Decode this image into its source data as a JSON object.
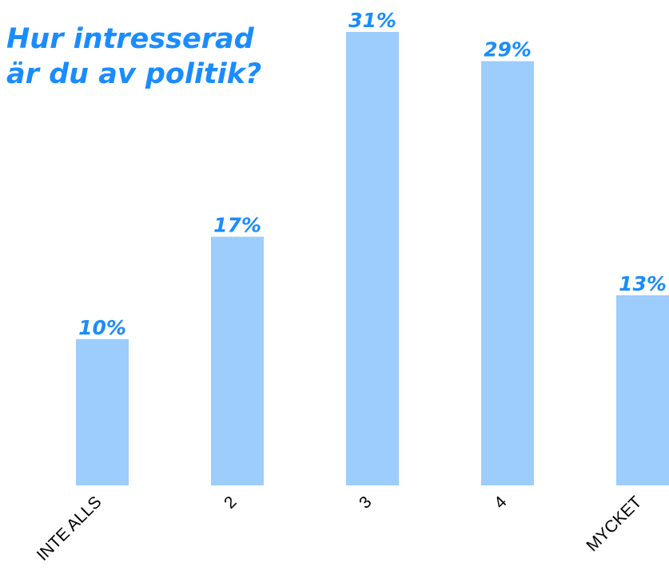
{
  "chart_data": {
    "type": "bar",
    "title": [
      "Hur intresserad",
      "är du av politik?"
    ],
    "categories": [
      "INTE ALLS",
      "2",
      "3",
      "4",
      "MYCKET"
    ],
    "values": [
      10,
      17,
      31,
      29,
      13
    ],
    "value_labels": [
      "10%",
      "17%",
      "31%",
      "29%",
      "13%"
    ],
    "unit": "%",
    "ylim": [
      0,
      31
    ],
    "grid": false,
    "legend": "none",
    "colors": {
      "bar": "#9ccdfc",
      "title": "#1a8cff",
      "data_label": "#1a8cff",
      "tick_label": "#000000"
    }
  }
}
